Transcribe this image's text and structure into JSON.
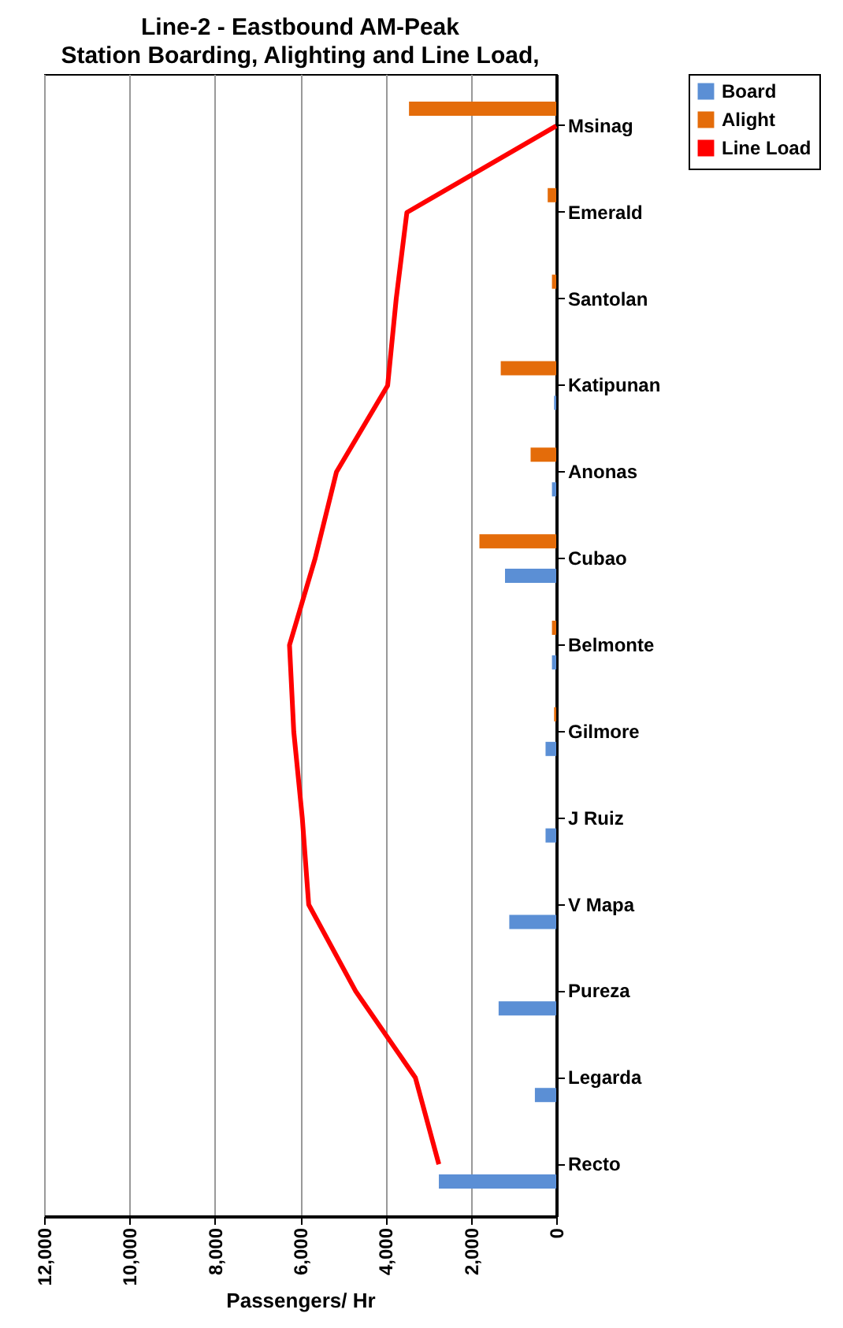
{
  "chart_data": {
    "type": "bar",
    "orientation": "horizontal",
    "title": "Line-2 - Eastbound AM-Peak",
    "subtitle": "Station Boarding, Alighting and Line Load,",
    "xlabel": "Passengers/ Hr",
    "categories": [
      "Msinag",
      "Emerald",
      "Santolan",
      "Katipunan",
      "Anonas",
      "Cubao",
      "Belmonte",
      "Gilmore",
      "J Ruiz",
      "V Mapa",
      "Pureza",
      "Legarda",
      "Recto"
    ],
    "series": [
      {
        "name": "Board",
        "color": "#5b8fd5",
        "values": [
          0,
          0,
          0,
          50,
          100,
          1200,
          100,
          250,
          250,
          1100,
          1350,
          500,
          2750
        ]
      },
      {
        "name": "Alight",
        "color": "#e46c0a",
        "values": [
          3450,
          200,
          100,
          1300,
          600,
          1800,
          100,
          50,
          0,
          0,
          0,
          0,
          0
        ]
      },
      {
        "name": "Line Load",
        "type": "line",
        "color": "#ff0000",
        "values": [
          0,
          3500,
          3750,
          3950,
          5150,
          5650,
          6250,
          6150,
          5950,
          5800,
          4700,
          3300,
          2750
        ]
      }
    ],
    "xlim": [
      12000,
      0
    ],
    "xticks": [
      {
        "value": 12000,
        "label": "12,000"
      },
      {
        "value": 10000,
        "label": "10,000"
      },
      {
        "value": 8000,
        "label": "8,000"
      },
      {
        "value": 6000,
        "label": "6,000"
      },
      {
        "value": 4000,
        "label": "4,000"
      },
      {
        "value": 2000,
        "label": "2,000"
      },
      0
    ],
    "grid": "x",
    "legend": "right"
  }
}
